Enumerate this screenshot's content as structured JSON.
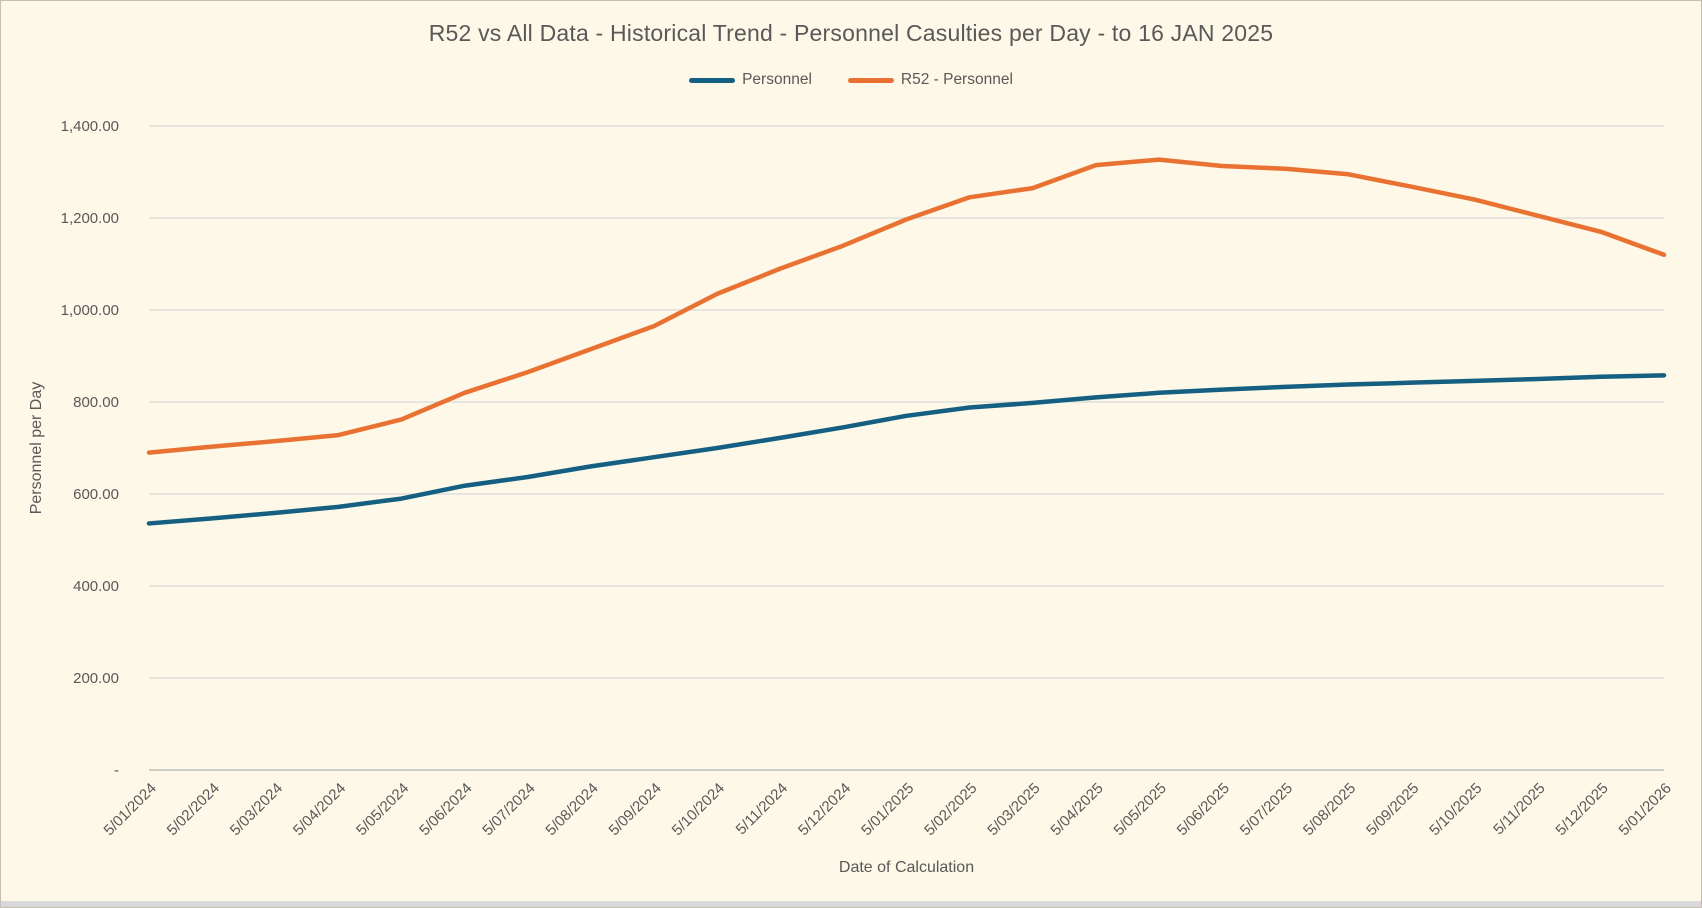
{
  "window": {
    "background": "#FDF8E7",
    "border_color": "#C6C0B0",
    "bottom_bar_color": "#D9D9D9"
  },
  "chart_data": {
    "type": "line",
    "title": "R52 vs All Data - Historical Trend - Personnel Casulties per Day - to 16 JAN 2025",
    "xlabel": "Date of Calculation",
    "ylabel": "Personnel per Day",
    "ylim": [
      0,
      1400
    ],
    "grid": true,
    "legend_position": "top",
    "gridline_color": "#D9D9D9",
    "axis_line_color": "#BFBFBF",
    "text_color": "#595959",
    "y_tick_values": [
      1400,
      1200,
      1000,
      800,
      600,
      400,
      200,
      0
    ],
    "y_tick_labels": [
      "1,400.00",
      "1,200.00",
      "1,000.00",
      "800.00",
      "600.00",
      "400.00",
      "200.00",
      "-"
    ],
    "categories": [
      "5/01/2024",
      "5/02/2024",
      "5/03/2024",
      "5/04/2024",
      "5/05/2024",
      "5/06/2024",
      "5/07/2024",
      "5/08/2024",
      "5/09/2024",
      "5/10/2024",
      "5/11/2024",
      "5/12/2024",
      "5/01/2025",
      "5/02/2025",
      "5/03/2025",
      "5/04/2025",
      "5/05/2025",
      "5/06/2025",
      "5/07/2025",
      "5/08/2025",
      "5/09/2025",
      "5/10/2025",
      "5/11/2025",
      "5/12/2025",
      "5/01/2026"
    ],
    "series": [
      {
        "name": "Personnel",
        "color": "#156082",
        "values": [
          536,
          547,
          559,
          572,
          590,
          618,
          637,
          660,
          680,
          700,
          722,
          745,
          770,
          788,
          798,
          810,
          820,
          827,
          833,
          838,
          842,
          846,
          850,
          855,
          858
        ]
      },
      {
        "name": "R52 - Personnel",
        "color": "#E97132",
        "values": [
          690,
          703,
          715,
          728,
          762,
          820,
          865,
          915,
          965,
          1035,
          1090,
          1140,
          1197,
          1245,
          1265,
          1315,
          1327,
          1313,
          1307,
          1295,
          1268,
          1240,
          1205,
          1170,
          1120
        ]
      }
    ]
  }
}
